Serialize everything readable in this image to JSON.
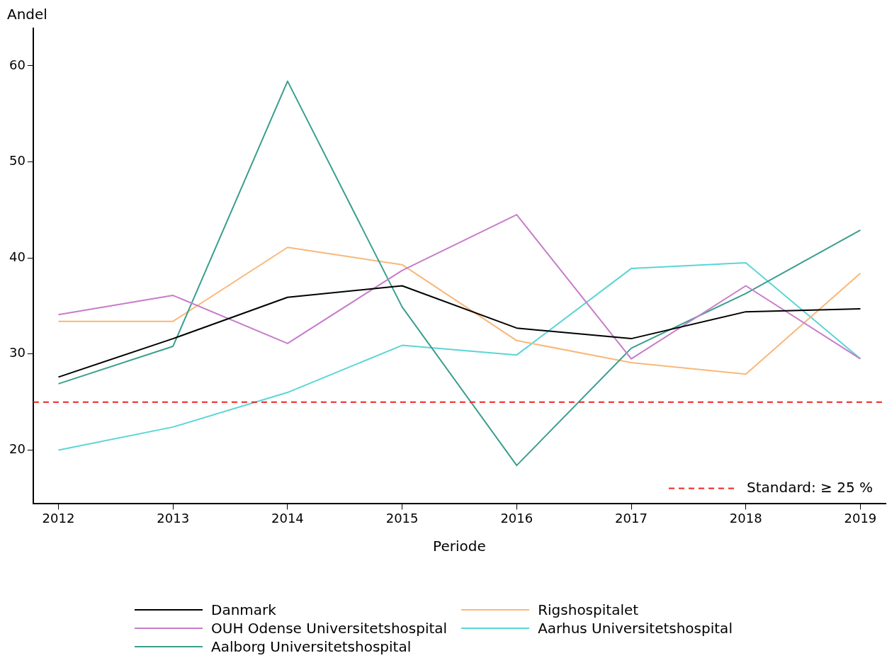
{
  "chart_data": {
    "type": "line",
    "xlabel": "Periode",
    "ylabel": "Andel",
    "x": [
      2012,
      2013,
      2014,
      2015,
      2016,
      2017,
      2018,
      2019
    ],
    "xlim": [
      2011.78,
      2019.22
    ],
    "xticks": [
      2012,
      2013,
      2014,
      2015,
      2016,
      2017,
      2018,
      2019
    ],
    "ylim": [
      14.4,
      63.9
    ],
    "yticks": [
      20,
      30,
      40,
      50,
      60
    ],
    "grid": false,
    "legend": "bottom",
    "marker": "none",
    "line_style": "solid",
    "series": [
      {
        "name": "Danmark",
        "color": "#000000",
        "values": [
          27.6,
          31.6,
          35.9,
          37.1,
          32.7,
          31.6,
          34.4,
          34.7
        ]
      },
      {
        "name": "OUH Odense Universitetshospital",
        "color": "#c77cca",
        "values": [
          34.1,
          36.1,
          31.1,
          38.7,
          44.5,
          29.5,
          37.1,
          29.5
        ]
      },
      {
        "name": "Aalborg Universitetshospital",
        "color": "#3a9e8e",
        "values": [
          26.9,
          30.8,
          58.4,
          34.9,
          18.4,
          30.6,
          36.3,
          42.9
        ]
      },
      {
        "name": "Rigshospitalet",
        "color": "#f8b878",
        "values": [
          33.4,
          33.4,
          41.1,
          39.3,
          31.4,
          29.1,
          27.9,
          38.4
        ]
      },
      {
        "name": "Aarhus Universitetshospital",
        "color": "#5bd5d5",
        "values": [
          20.0,
          22.4,
          26.0,
          30.9,
          29.9,
          38.9,
          39.5,
          29.5
        ]
      }
    ],
    "ref_lines": [
      {
        "axis": "y",
        "value": 25,
        "label": "Standard: ≥ 25 %",
        "color": "#ee2222",
        "line_style": "dashed"
      }
    ]
  }
}
